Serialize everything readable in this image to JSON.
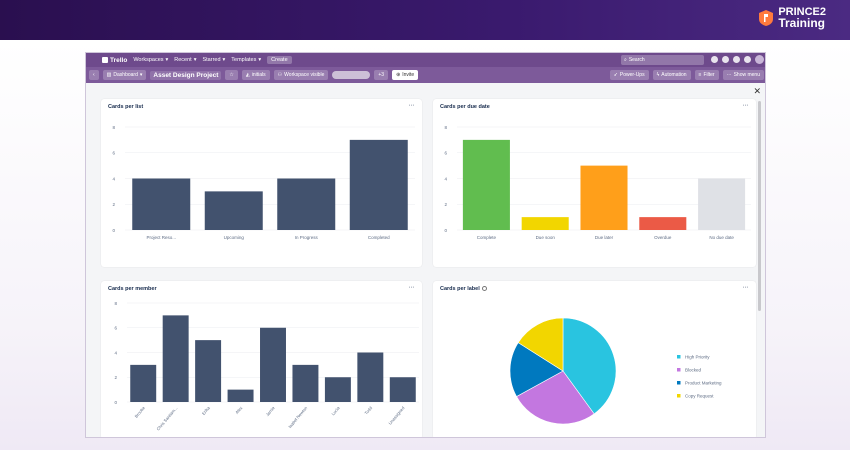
{
  "brand": {
    "line1": "PRINCE2",
    "line2": "Training"
  },
  "topbar": {
    "logo": "Trello",
    "menus": [
      "Workspaces",
      "Recent",
      "Starred",
      "Templates"
    ],
    "create": "Create",
    "search_placeholder": "Search"
  },
  "boardbar": {
    "dashboard": "Dashboard",
    "board_title": "Asset Design Project",
    "initials": "initials",
    "visibility": "Workspace visible",
    "member_count": "+3",
    "invite": "Invite",
    "powerups": "Power-Ups",
    "automation": "Automation",
    "filter": "Filter",
    "show_menu": "Show menu"
  },
  "colors": {
    "bar": "#42526e",
    "accent": "#6e4a8c"
  },
  "cards": {
    "list": {
      "title": "Cards per list",
      "more": "···"
    },
    "due": {
      "title": "Cards per due date",
      "more": "···"
    },
    "member": {
      "title": "Cards per member",
      "more": "···"
    },
    "label": {
      "title": "Cards per label",
      "more": "···"
    }
  },
  "chart_data": [
    {
      "type": "bar",
      "title": "Cards per list",
      "categories": [
        "Project Reso...",
        "Upcoming",
        "In Progress",
        "Completed"
      ],
      "values": [
        4,
        3,
        4,
        7
      ],
      "ylim": [
        0,
        8
      ],
      "yticks": [
        0,
        2,
        4,
        6,
        8
      ],
      "colors": [
        "#42526e",
        "#42526e",
        "#42526e",
        "#42526e"
      ]
    },
    {
      "type": "bar",
      "title": "Cards per due date",
      "categories": [
        "Complete",
        "Due soon",
        "Due later",
        "Overdue",
        "No due date"
      ],
      "values": [
        7,
        1,
        5,
        1,
        4
      ],
      "ylim": [
        0,
        8
      ],
      "yticks": [
        0,
        2,
        4,
        6,
        8
      ],
      "colors": [
        "#61bd4f",
        "#f2d600",
        "#ff9f1a",
        "#eb5a46",
        "#dfe1e6"
      ]
    },
    {
      "type": "bar",
      "title": "Cards per member",
      "categories": [
        "Brooke",
        "Chris Santiam...",
        "Erika",
        "Alex",
        "Jamie",
        "Isabel Newton",
        "Lucia",
        "Todd",
        "Unassigned"
      ],
      "values": [
        3,
        7,
        5,
        1,
        6,
        3,
        2,
        4,
        2
      ],
      "ylim": [
        0,
        8
      ],
      "yticks": [
        0,
        2,
        4,
        6,
        8
      ],
      "colors": [
        "#42526e"
      ]
    },
    {
      "type": "pie",
      "title": "Cards per label",
      "categories": [
        "High Priority",
        "Blocked",
        "Product Marketing",
        "Copy Request"
      ],
      "values": [
        40,
        27,
        17,
        16
      ],
      "colors": [
        "#29c4e0",
        "#c377e0",
        "#0079bf",
        "#f2d600"
      ]
    }
  ]
}
